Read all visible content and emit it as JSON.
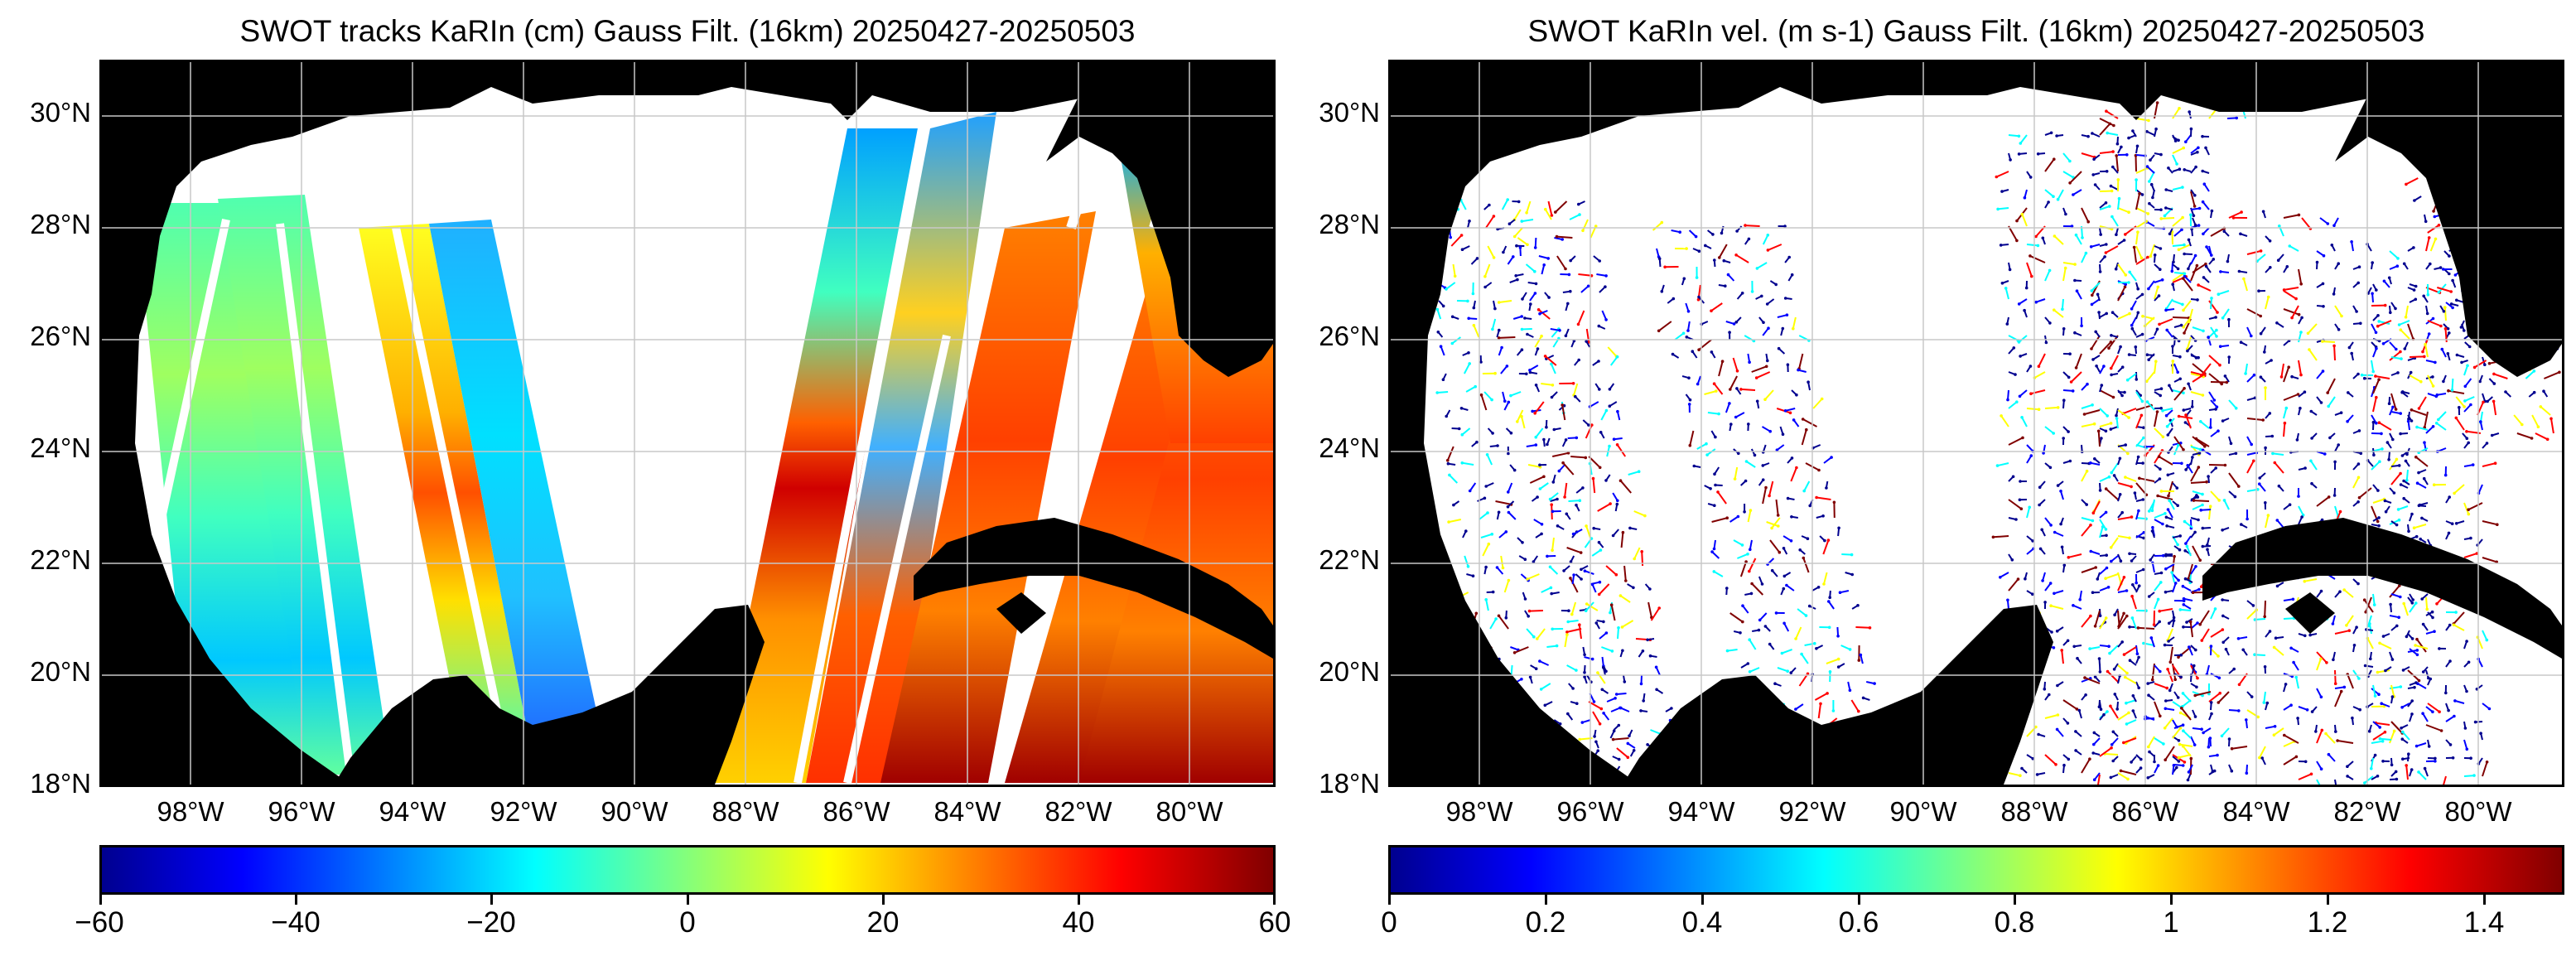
{
  "panels": [
    {
      "title": "SWOT tracks KaRIn (cm) Gauss Filt. (16km) 20250427-20250503",
      "lat_ticks": [
        "30°N",
        "28°N",
        "26°N",
        "24°N",
        "22°N",
        "20°N",
        "18°N"
      ],
      "lon_ticks": [
        "98°W",
        "96°W",
        "94°W",
        "92°W",
        "90°W",
        "88°W",
        "86°W",
        "84°W",
        "82°W",
        "80°W"
      ],
      "colorbar": {
        "ticks": [
          "−60",
          "−40",
          "−20",
          "0",
          "20",
          "40",
          "60"
        ],
        "range": [
          -60,
          60
        ],
        "colormap": "jet"
      }
    },
    {
      "title": "SWOT KaRIn vel. (m s-1) Gauss Filt. (16km) 20250427-20250503",
      "lat_ticks": [
        "30°N",
        "28°N",
        "26°N",
        "24°N",
        "22°N",
        "20°N",
        "18°N"
      ],
      "lon_ticks": [
        "98°W",
        "96°W",
        "94°W",
        "92°W",
        "90°W",
        "88°W",
        "86°W",
        "84°W",
        "82°W",
        "80°W"
      ],
      "colorbar": {
        "ticks": [
          "0",
          "0.2",
          "0.4",
          "0.6",
          "0.8",
          "1",
          "1.2",
          "1.4"
        ],
        "range": [
          0,
          1.5
        ],
        "colormap": "jet"
      }
    }
  ],
  "map_extent": {
    "lon_range": [
      -99,
      -77.8
    ],
    "lat_range": [
      18,
      31
    ]
  },
  "colors": {
    "land": "#000000",
    "ocean": "#ffffff",
    "gridline": "#c8c8c8",
    "jet": [
      "#00008f",
      "#0000ff",
      "#00ffff",
      "#ffff00",
      "#ff0000",
      "#800000"
    ]
  }
}
